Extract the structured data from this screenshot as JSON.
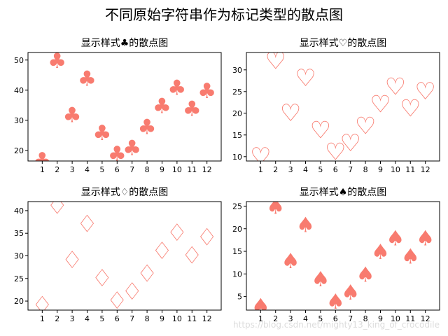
{
  "figure": {
    "suptitle": "不同原始字符串作为标记类型的散点图",
    "watermark": "https://blog.csdn.net/mighty13_king_of_crocodile"
  },
  "chart_data": [
    {
      "type": "scatter",
      "title": "显示样式♣的散点图",
      "marker_symbol": "♣",
      "marker_style": "filled",
      "color": "#f87b6f",
      "categories": [
        "1",
        "2",
        "3",
        "4",
        "5",
        "6",
        "7",
        "8",
        "9",
        "10",
        "11",
        "12"
      ],
      "x": [
        1,
        2,
        3,
        4,
        5,
        6,
        7,
        8,
        9,
        10,
        11,
        12
      ],
      "y": [
        17,
        50,
        32,
        44,
        26,
        19,
        21,
        28,
        35,
        41,
        34,
        40
      ],
      "ylim": [
        16.5,
        52.5
      ],
      "yticks": [
        20,
        30,
        40,
        50
      ]
    },
    {
      "type": "scatter",
      "title": "显示样式♡的散点图",
      "marker_symbol": "♡",
      "marker_style": "outline",
      "color": "#f87b6f",
      "categories": [
        "1",
        "2",
        "3",
        "4",
        "5",
        "6",
        "7",
        "8",
        "9",
        "10",
        "11",
        "12"
      ],
      "x": [
        1,
        2,
        3,
        4,
        5,
        6,
        7,
        8,
        9,
        10,
        11,
        12
      ],
      "y": [
        10,
        32,
        20,
        28,
        16,
        11,
        13,
        17,
        22,
        26,
        21,
        25
      ],
      "ylim": [
        9,
        34
      ],
      "yticks": [
        10,
        15,
        20,
        25,
        30
      ]
    },
    {
      "type": "scatter",
      "title": "显示样式♢的散点图",
      "marker_symbol": "♢",
      "marker_style": "outline",
      "color": "#f87b6f",
      "categories": [
        "1",
        "2",
        "3",
        "4",
        "5",
        "6",
        "7",
        "8",
        "9",
        "10",
        "11",
        "12"
      ],
      "x": [
        1,
        2,
        3,
        4,
        5,
        6,
        7,
        8,
        9,
        10,
        11,
        12
      ],
      "y": [
        19,
        41,
        29,
        37,
        25,
        20,
        22,
        26,
        31,
        35,
        30,
        34
      ],
      "ylim": [
        18,
        42
      ],
      "yticks": [
        20,
        25,
        30,
        35,
        40
      ]
    },
    {
      "type": "scatter",
      "title": "显示样式♠的散点图",
      "marker_symbol": "♠",
      "marker_style": "filled",
      "color": "#f87b6f",
      "categories": [
        "1",
        "2",
        "3",
        "4",
        "5",
        "6",
        "7",
        "8",
        "9",
        "10",
        "11",
        "12"
      ],
      "x": [
        1,
        2,
        3,
        4,
        5,
        6,
        7,
        8,
        9,
        10,
        11,
        12
      ],
      "y": [
        3,
        25,
        13,
        21,
        9,
        4,
        6,
        10,
        15,
        18,
        14,
        18
      ],
      "ylim": [
        2,
        26
      ],
      "yticks": [
        5,
        10,
        15,
        20,
        25
      ]
    }
  ]
}
